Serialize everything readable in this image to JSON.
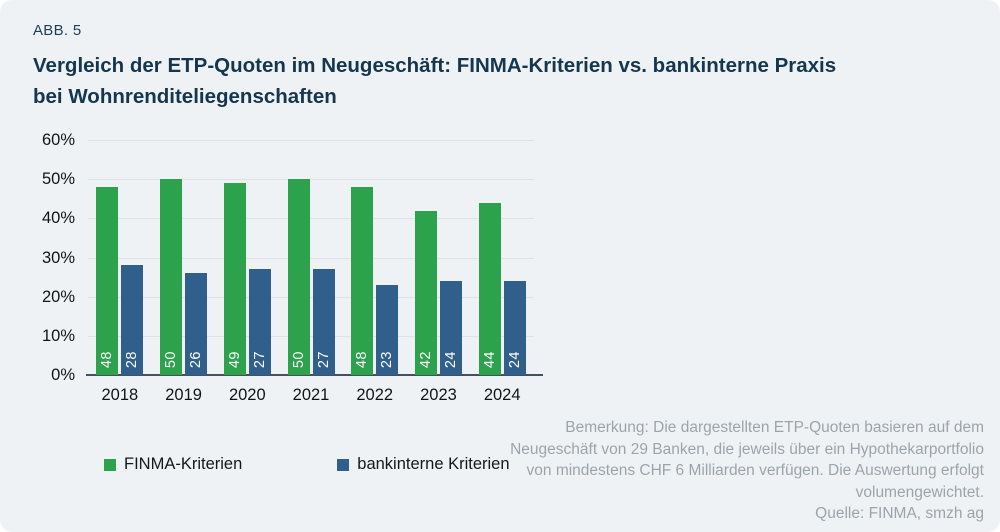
{
  "figure_label": "ABB. 5",
  "title_lines": [
    "Vergleich der ETP-Quoten im Neugeschäft: FINMA-Kriterien vs. bankinterne Praxis",
    "bei Wohnrenditeliegenschaften"
  ],
  "chart_data": {
    "type": "bar",
    "categories": [
      "2018",
      "2019",
      "2020",
      "2021",
      "2022",
      "2023",
      "2024"
    ],
    "series": [
      {
        "name": "FINMA-Kriterien",
        "color": "#2CA24D",
        "values": [
          48,
          50,
          49,
          50,
          48,
          42,
          44
        ]
      },
      {
        "name": "bankinterne Kriterien",
        "color": "#305F8C",
        "values": [
          28,
          26,
          27,
          27,
          23,
          24,
          24
        ]
      }
    ],
    "title": "Vergleich der ETP-Quoten im Neugeschäft: FINMA-Kriterien vs. bankinterne Praxis bei Wohnrenditeliegenschaften",
    "xlabel": "",
    "ylabel": "",
    "ylim": [
      0,
      60
    ],
    "ytick_step": 10,
    "ytick_labels": [
      "0%",
      "10%",
      "20%",
      "30%",
      "40%",
      "50%",
      "60%"
    ],
    "grid": true,
    "legend_position": "bottom-left",
    "bar_value_labels": "white, rotated 90°, inside bar bottom"
  },
  "note": {
    "remark": "Bemerkung: Die dargestellten ETP-Quoten basieren auf dem Neugeschäft von 29 Banken, die jeweils über ein Hypothekarportfolio von mindestens CHF 6 Milliarden verfügen. Die Auswertung erfolgt volumengewichtet.",
    "source": "Quelle: FINMA, smzh ag"
  },
  "colors": {
    "background": "#EFF2F4",
    "title": "#15364F",
    "gridline": "#DEE2E5",
    "axis_line": "#44505B",
    "note_text": "#9CA4AB",
    "green_series": "#2CA24D",
    "blue_series": "#305F8C"
  }
}
